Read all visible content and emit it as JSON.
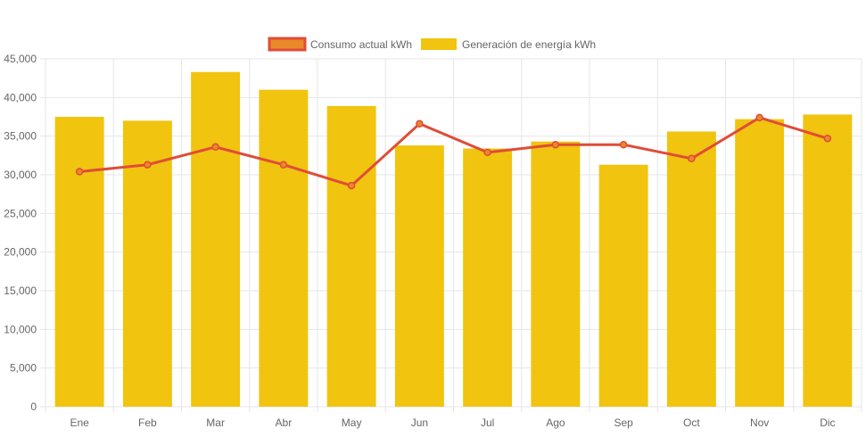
{
  "colors": {
    "bar_fill": "#F0C40F",
    "line_stroke": "#E04C38",
    "line_legend_fill": "#E8892A",
    "point_fill": "#E8892A",
    "grid": "#E6E6E6",
    "axis_text": "#666666",
    "legend_text": "#666666"
  },
  "chart_data": {
    "type": "bar",
    "title": "",
    "xlabel": "",
    "ylabel": "",
    "ylim": [
      0,
      45000
    ],
    "grid": true,
    "legend_position": "top-center",
    "categories": [
      "Ene",
      "Feb",
      "Mar",
      "Abr",
      "May",
      "Jun",
      "Jul",
      "Ago",
      "Sep",
      "Oct",
      "Nov",
      "Dic"
    ],
    "y_ticks": [
      "0",
      "5,000",
      "10,000",
      "15,000",
      "20,000",
      "25,000",
      "30,000",
      "35,000",
      "40,000",
      "45,000"
    ],
    "y_tick_values": [
      0,
      5000,
      10000,
      15000,
      20000,
      25000,
      30000,
      35000,
      40000,
      45000
    ],
    "series": [
      {
        "name": "Consumo actual kWh",
        "type": "line",
        "values": [
          30400,
          31300,
          33600,
          31300,
          28600,
          36600,
          32900,
          33900,
          33900,
          32100,
          37400,
          34700
        ]
      },
      {
        "name": "Generación de energía kWh",
        "type": "bar",
        "values": [
          37500,
          37000,
          43300,
          41000,
          38900,
          33800,
          33400,
          34300,
          31300,
          35600,
          37200,
          37800
        ]
      }
    ]
  }
}
